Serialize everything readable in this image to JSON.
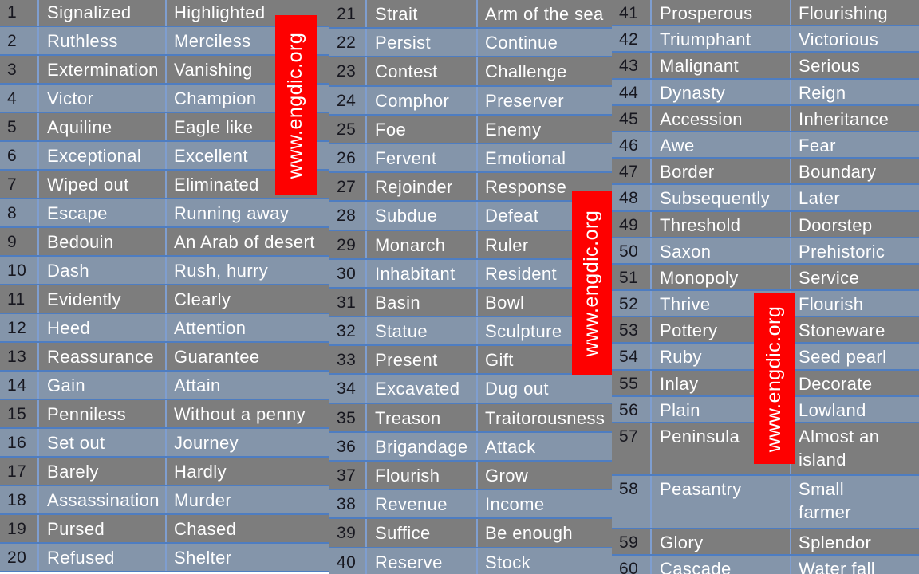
{
  "watermark": {
    "text": "www.engdic.org"
  },
  "colors": {
    "row_gray": "#7d7d7d",
    "row_blue": "#8495aa",
    "grid_h": "#4e7dc1",
    "grid_v": "#7f9ecf",
    "number_text": "#17171f",
    "word_text": "#ffffff",
    "watermark_bg": "#fe0000",
    "watermark_text": "#ffffff"
  },
  "groups": [
    {
      "rows": [
        {
          "n": "1",
          "word": "Signalized",
          "syn": "Highlighted"
        },
        {
          "n": "2",
          "word": "Ruthless",
          "syn": "Merciless"
        },
        {
          "n": "3",
          "word": "Extermination",
          "syn": "Vanishing"
        },
        {
          "n": "4",
          "word": "Victor",
          "syn": "Champion"
        },
        {
          "n": "5",
          "word": "Aquiline",
          "syn": "Eagle like"
        },
        {
          "n": "6",
          "word": "Exceptional",
          "syn": "Excellent"
        },
        {
          "n": "7",
          "word": "Wiped out",
          "syn": "Eliminated"
        },
        {
          "n": "8",
          "word": "Escape",
          "syn": "Running away"
        },
        {
          "n": "9",
          "word": "Bedouin",
          "syn": "An Arab of desert"
        },
        {
          "n": "10",
          "word": "Dash",
          "syn": "Rush, hurry"
        },
        {
          "n": "11",
          "word": "Evidently",
          "syn": "Clearly"
        },
        {
          "n": "12",
          "word": "Heed",
          "syn": "Attention"
        },
        {
          "n": "13",
          "word": "Reassurance",
          "syn": "Guarantee"
        },
        {
          "n": "14",
          "word": "Gain",
          "syn": "Attain"
        },
        {
          "n": "15",
          "word": "Penniless",
          "syn": "Without a penny"
        },
        {
          "n": "16",
          "word": "Set out",
          "syn": "Journey"
        },
        {
          "n": "17",
          "word": "Barely",
          "syn": "Hardly"
        },
        {
          "n": "18",
          "word": "Assassination",
          "syn": "Murder"
        },
        {
          "n": "19",
          "word": "Pursed",
          "syn": "Chased"
        },
        {
          "n": "20",
          "word": "Refused",
          "syn": "Shelter"
        }
      ]
    },
    {
      "rows": [
        {
          "n": "21",
          "word": "Strait",
          "syn": "Arm of the sea"
        },
        {
          "n": "22",
          "word": "Persist",
          "syn": "Continue"
        },
        {
          "n": "23",
          "word": "Contest",
          "syn": "Challenge"
        },
        {
          "n": "24",
          "word": "Comphor",
          "syn": "Preserver"
        },
        {
          "n": "25",
          "word": "Foe",
          "syn": "Enemy"
        },
        {
          "n": "26",
          "word": "Fervent",
          "syn": "Emotional"
        },
        {
          "n": "27",
          "word": "Rejoinder",
          "syn": "Response"
        },
        {
          "n": "28",
          "word": "Subdue",
          "syn": "Defeat"
        },
        {
          "n": "29",
          "word": "Monarch",
          "syn": "Ruler"
        },
        {
          "n": "30",
          "word": "Inhabitant",
          "syn": "Resident"
        },
        {
          "n": "31",
          "word": "Basin",
          "syn": "Bowl"
        },
        {
          "n": "32",
          "word": "Statue",
          "syn": "Sculpture"
        },
        {
          "n": "33",
          "word": "Present",
          "syn": "Gift"
        },
        {
          "n": "34",
          "word": "Excavated",
          "syn": "Dug out"
        },
        {
          "n": "35",
          "word": "Treason",
          "syn": "Traitorousness"
        },
        {
          "n": "36",
          "word": "Brigandage",
          "syn": "Attack"
        },
        {
          "n": "37",
          "word": "Flourish",
          "syn": "Grow"
        },
        {
          "n": "38",
          "word": "Revenue",
          "syn": "Income"
        },
        {
          "n": "39",
          "word": "Suffice",
          "syn": "Be enough"
        },
        {
          "n": "40",
          "word": "Reserve",
          "syn": "Stock"
        }
      ]
    },
    {
      "rows": [
        {
          "n": "41",
          "word": "Prosperous",
          "syn": "Flourishing"
        },
        {
          "n": "42",
          "word": "Triumphant",
          "syn": "Victorious"
        },
        {
          "n": "43",
          "word": "Malignant",
          "syn": "Serious"
        },
        {
          "n": "44",
          "word": "Dynasty",
          "syn": "Reign"
        },
        {
          "n": "45",
          "word": "Accession",
          "syn": "Inheritance"
        },
        {
          "n": "46",
          "word": "Awe",
          "syn": "Fear"
        },
        {
          "n": "47",
          "word": "Border",
          "syn": "Boundary"
        },
        {
          "n": "48",
          "word": "Subsequently",
          "syn": "Later"
        },
        {
          "n": "49",
          "word": "Threshold",
          "syn": "Doorstep"
        },
        {
          "n": "50",
          "word": "Saxon",
          "syn": "Prehistoric"
        },
        {
          "n": "51",
          "word": "Monopoly",
          "syn": "Service"
        },
        {
          "n": "52",
          "word": "Thrive",
          "syn": "Flourish"
        },
        {
          "n": "53",
          "word": "Pottery",
          "syn": "Stoneware"
        },
        {
          "n": "54",
          "word": "Ruby",
          "syn": "Seed pearl"
        },
        {
          "n": "55",
          "word": "Inlay",
          "syn": "Decorate"
        },
        {
          "n": "56",
          "word": "Plain",
          "syn": "Lowland"
        },
        {
          "n": "57",
          "word": "Peninsula",
          "syn": "Almost an\nisland",
          "tall": true
        },
        {
          "n": "58",
          "word": "Peasantry",
          "syn": "Small\nfarmer",
          "tall": true
        },
        {
          "n": "59",
          "word": "Glory",
          "syn": "Splendor"
        },
        {
          "n": "60",
          "word": "Cascade",
          "syn": "Water fall"
        }
      ]
    }
  ]
}
